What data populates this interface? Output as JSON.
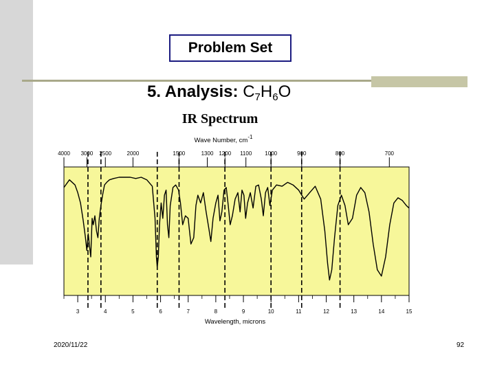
{
  "slide": {
    "title": "Problem Set",
    "subtitle_label": "5. Analysis:",
    "formula": {
      "c": "C",
      "c_sub": "7",
      "h": "H",
      "h_sub": "6",
      "o": "O"
    },
    "date": "2020/11/22",
    "page_number": "92"
  },
  "colors": {
    "plot_bg": "#f7f79a",
    "sidebar": "#d7d7d7",
    "rule": "#a9a98a",
    "accent": "#c6c6a6",
    "title_border": "#1a1a80"
  },
  "chart_data": {
    "type": "line",
    "title": "IR Spectrum",
    "top_axis": {
      "label": "Wave Number, cm",
      "label_sup": "-1",
      "ticks": [
        {
          "text": "4000",
          "wavenumber": 4000
        },
        {
          "text": "3000",
          "wavenumber": 3000
        },
        {
          "text": "2500",
          "wavenumber": 2500
        },
        {
          "text": "2000",
          "wavenumber": 2000
        },
        {
          "text": "1500",
          "wavenumber": 1500
        },
        {
          "text": "1300",
          "wavenumber": 1300
        },
        {
          "text": "1200",
          "wavenumber": 1200
        },
        {
          "text": "1100",
          "wavenumber": 1100
        },
        {
          "text": "1000",
          "wavenumber": 1000
        },
        {
          "text": "900",
          "wavenumber": 900
        },
        {
          "text": "800",
          "wavenumber": 800
        },
        {
          "text": "700",
          "wavenumber": 700
        }
      ]
    },
    "bottom_axis": {
      "label": "Wavelength, microns",
      "range": [
        2.5,
        15
      ],
      "ticks": [
        {
          "text": "3",
          "value": 3
        },
        {
          "text": "4",
          "value": 4
        },
        {
          "text": "5",
          "value": 5
        },
        {
          "text": "6",
          "value": 6
        },
        {
          "text": "7",
          "value": 7
        },
        {
          "text": "8",
          "value": 8
        },
        {
          "text": "9",
          "value": 9
        },
        {
          "text": "10",
          "value": 10
        },
        {
          "text": "11",
          "value": 11
        },
        {
          "text": "12",
          "value": 12
        },
        {
          "text": "13",
          "value": 13
        },
        {
          "text": "14",
          "value": 14
        },
        {
          "text": "15",
          "value": 15
        }
      ]
    },
    "ylim": [
      0,
      100
    ],
    "y_meaning": "transmittance (%)",
    "gridlines_dashed_microns": [
      3.37,
      3.84,
      5.88,
      6.67,
      8.33,
      10.0,
      11.11,
      12.5
    ],
    "series": [
      {
        "name": "IR transmittance",
        "x": [
          2.5,
          2.7,
          2.9,
          3.0,
          3.1,
          3.2,
          3.28,
          3.33,
          3.38,
          3.42,
          3.47,
          3.52,
          3.56,
          3.62,
          3.68,
          3.73,
          3.78,
          3.84,
          3.9,
          3.97,
          4.05,
          4.15,
          4.3,
          4.5,
          4.7,
          4.9,
          5.1,
          5.3,
          5.5,
          5.7,
          5.8,
          5.85,
          5.88,
          5.92,
          5.96,
          6.02,
          6.08,
          6.14,
          6.2,
          6.25,
          6.3,
          6.35,
          6.45,
          6.55,
          6.65,
          6.72,
          6.8,
          6.9,
          7.0,
          7.1,
          7.2,
          7.28,
          7.35,
          7.45,
          7.55,
          7.65,
          7.75,
          7.82,
          7.9,
          8.0,
          8.08,
          8.15,
          8.22,
          8.3,
          8.38,
          8.45,
          8.52,
          8.6,
          8.7,
          8.8,
          8.88,
          8.95,
          9.02,
          9.08,
          9.15,
          9.25,
          9.35,
          9.45,
          9.55,
          9.65,
          9.72,
          9.8,
          9.88,
          9.96,
          10.05,
          10.2,
          10.4,
          10.6,
          10.8,
          11.0,
          11.2,
          11.4,
          11.6,
          11.8,
          11.95,
          12.05,
          12.12,
          12.2,
          12.3,
          12.42,
          12.55,
          12.68,
          12.8,
          12.95,
          13.1,
          13.25,
          13.4,
          13.55,
          13.7,
          13.85,
          14.0,
          14.15,
          14.3,
          14.45,
          14.6,
          14.75,
          14.9,
          15.0
        ],
        "y": [
          84,
          90,
          86,
          80,
          72,
          58,
          45,
          35,
          48,
          40,
          30,
          60,
          55,
          62,
          50,
          45,
          60,
          70,
          78,
          86,
          88,
          90,
          91,
          92,
          92,
          92,
          91,
          92,
          90,
          85,
          60,
          30,
          22,
          30,
          55,
          72,
          60,
          78,
          82,
          55,
          45,
          70,
          84,
          86,
          82,
          72,
          55,
          62,
          60,
          40,
          45,
          70,
          78,
          72,
          80,
          65,
          52,
          42,
          60,
          72,
          78,
          58,
          65,
          82,
          84,
          70,
          55,
          62,
          75,
          80,
          65,
          82,
          78,
          60,
          72,
          80,
          68,
          85,
          86,
          75,
          62,
          80,
          84,
          70,
          82,
          86,
          85,
          88,
          86,
          82,
          75,
          80,
          85,
          75,
          50,
          25,
          12,
          20,
          45,
          70,
          78,
          70,
          55,
          60,
          78,
          84,
          80,
          65,
          40,
          20,
          15,
          30,
          55,
          72,
          76,
          74,
          70,
          68
        ]
      }
    ]
  }
}
